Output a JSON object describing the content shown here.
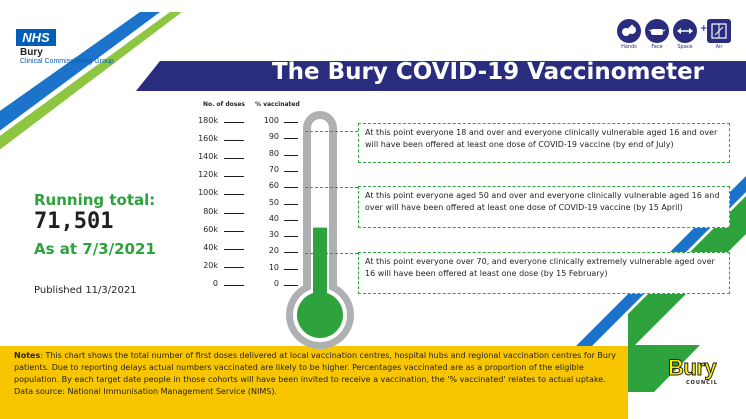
{
  "header": {
    "nhs_logo": "NHS",
    "org_name": "Bury",
    "org_sub": "Clinical Commissioning Group",
    "title": "The Bury COVID-19 Vaccinometer"
  },
  "hints": [
    {
      "label": "Hands",
      "icon": "hands-icon"
    },
    {
      "label": "Face",
      "icon": "face-icon"
    },
    {
      "label": "Space",
      "icon": "space-icon"
    },
    {
      "label": "Air",
      "icon": "air-icon"
    }
  ],
  "hint_plus": "+",
  "gauge": {
    "doses_header": "No. of doses",
    "percent_header": "% vaccinated",
    "doses_ticks": [
      "180k",
      "160k",
      "140k",
      "120k",
      "100k",
      "80k",
      "60k",
      "40k",
      "20k",
      "0"
    ],
    "percent_ticks": [
      "100",
      "90",
      "80",
      "70",
      "60",
      "50",
      "40",
      "30",
      "20",
      "10",
      "0"
    ],
    "fill_percent": 35
  },
  "callouts": [
    {
      "text": "At this point everyone 18 and over and everyone clinically vulnerable aged 16 and over will have been offered at least one dose of COVID-19 vaccine (by end of July)",
      "level_percent": 90
    },
    {
      "text": "At this point everyone aged 50 and over and everyone clinically vulnerable aged 16 and over will have been offered at least one dose of COVID-19 vaccine (by 15 April)",
      "level_percent": 60
    },
    {
      "text": "At this point everyone over 70, and everyone clinically extremely vulnerable aged over 16 will have been offered at least one dose (by 15 February)",
      "level_percent": 20
    }
  ],
  "summary": {
    "running_label": "Running total:",
    "running_value": "71,501",
    "as_at": "As at 7/3/2021",
    "published": "Published 11/3/2021"
  },
  "notes": {
    "label": "Notes",
    "text": ": This chart shows the total number of first doses delivered at local vaccination centres, hospital hubs and regional vaccination centres for Bury patients. Due to reporting delays actual numbers vaccinated are likely to be higher.  Percentages vaccinated are as a proportion of the eligible population.  By each target date people in those cohorts will have been invited to receive a vaccination, the '% vaccinated' relates to actual uptake.  Data source: National Immunisation Management Service (NIMS)."
  },
  "footer_logo": {
    "name": "Bury",
    "sub": "COUNCIL"
  },
  "colors": {
    "nhs_blue": "#005eb8",
    "banner_navy": "#2a2c7e",
    "stripe_blue": "#1b74c9",
    "green": "#2ea23c",
    "yellow": "#f7c600"
  }
}
